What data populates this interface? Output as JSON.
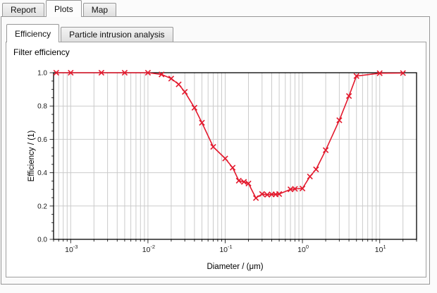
{
  "main_tabs": [
    {
      "label": "Report",
      "active": false
    },
    {
      "label": "Plots",
      "active": true
    },
    {
      "label": "Map",
      "active": false
    }
  ],
  "sub_tabs": [
    {
      "label": "Efficiency",
      "active": true
    },
    {
      "label": "Particle intrusion analysis",
      "active": false
    }
  ],
  "section_label": "Filter efficiency",
  "chart_data": {
    "type": "line",
    "title": "Filter efficiency",
    "xlabel": "Diameter / (μm)",
    "ylabel": "Efficiency / (1)",
    "xscale": "log",
    "xlim": [
      0.0006,
      30
    ],
    "ylim": [
      0.0,
      1.0
    ],
    "grid": true,
    "legend": "none",
    "marker": "x",
    "line_color": "#e3192d",
    "grid_color": "#cbcbcb",
    "axis_color": "#000000",
    "x": [
      0.00065,
      0.001,
      0.0025,
      0.005,
      0.01,
      0.015,
      0.02,
      0.025,
      0.03,
      0.04,
      0.05,
      0.07,
      0.1,
      0.125,
      0.15,
      0.175,
      0.2,
      0.25,
      0.3,
      0.35,
      0.4,
      0.45,
      0.5,
      0.7,
      0.8,
      1.0,
      1.25,
      1.5,
      2.0,
      3.0,
      4.0,
      5.0,
      10.0,
      20.0
    ],
    "y": [
      1.0,
      1.0,
      1.0,
      1.0,
      1.0,
      0.99,
      0.965,
      0.93,
      0.885,
      0.79,
      0.7,
      0.555,
      0.485,
      0.43,
      0.352,
      0.345,
      0.335,
      0.248,
      0.272,
      0.268,
      0.27,
      0.27,
      0.272,
      0.3,
      0.303,
      0.305,
      0.377,
      0.42,
      0.535,
      0.715,
      0.86,
      0.98,
      0.997,
      0.998
    ],
    "x_ticks": [
      {
        "value": 0.001,
        "base": "10",
        "exp": "-3"
      },
      {
        "value": 0.01,
        "base": "10",
        "exp": "-2"
      },
      {
        "value": 0.1,
        "base": "10",
        "exp": "-1"
      },
      {
        "value": 1.0,
        "base": "10",
        "exp": "0"
      },
      {
        "value": 10.0,
        "base": "10",
        "exp": "1"
      }
    ],
    "y_ticks": [
      {
        "value": 0.0,
        "label": "0.0"
      },
      {
        "value": 0.2,
        "label": "0.2"
      },
      {
        "value": 0.4,
        "label": "0.4"
      },
      {
        "value": 0.6,
        "label": "0.6"
      },
      {
        "value": 0.8,
        "label": "0.8"
      },
      {
        "value": 1.0,
        "label": "1.0"
      }
    ]
  }
}
